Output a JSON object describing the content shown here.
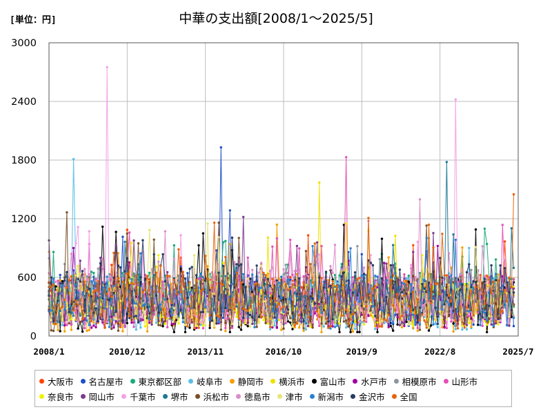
{
  "unit_label": "[単位：円]",
  "chart_data": {
    "type": "line",
    "title": "中華の支出額[2008/1～2025/5]",
    "ylim": [
      0,
      3000
    ],
    "yticks": [
      0,
      600,
      1200,
      1800,
      2400,
      3000
    ],
    "x_start": "2008/1",
    "x_end": "2025/7",
    "xticks": [
      "2008/1",
      "2010/12",
      "2013/11",
      "2016/10",
      "2019/9",
      "2022/8",
      "2025/7"
    ],
    "grid": true,
    "legend_position": "bottom",
    "series": [
      {
        "name": "大阪市",
        "color": "#ff4500"
      },
      {
        "name": "名古屋市",
        "color": "#1e50c8"
      },
      {
        "name": "東京都区部",
        "color": "#1aaa78"
      },
      {
        "name": "岐阜市",
        "color": "#5abee6"
      },
      {
        "name": "静岡市",
        "color": "#f5a000"
      },
      {
        "name": "横浜市",
        "color": "#f0e000"
      },
      {
        "name": "富山市",
        "color": "#000000"
      },
      {
        "name": "水戸市",
        "color": "#a000a0"
      },
      {
        "name": "相模原市",
        "color": "#8c96a0"
      },
      {
        "name": "山形市",
        "color": "#e650b4"
      },
      {
        "name": "奈良市",
        "color": "#f0f000"
      },
      {
        "name": "岡山市",
        "color": "#7a3c8c"
      },
      {
        "name": "千葉市",
        "color": "#f5a0e6"
      },
      {
        "name": "堺市",
        "color": "#1e7896"
      },
      {
        "name": "浜松市",
        "color": "#785028"
      },
      {
        "name": "徳島市",
        "color": "#dc8cc8"
      },
      {
        "name": "津市",
        "color": "#e6e678"
      },
      {
        "name": "新潟市",
        "color": "#2882d2"
      },
      {
        "name": "金沢市",
        "color": "#283c64"
      },
      {
        "name": "全国",
        "color": "#e6640a"
      }
    ],
    "peaks": [
      {
        "series": "千葉市",
        "date": "2010/3",
        "value": 2750
      },
      {
        "series": "千葉市",
        "date": "2023/3",
        "value": 2420
      },
      {
        "series": "名古屋市",
        "date": "2014/6",
        "value": 1930
      },
      {
        "series": "山形市",
        "date": "2019/2",
        "value": 1830
      },
      {
        "series": "岐阜市",
        "date": "2008/12",
        "value": 1810
      },
      {
        "series": "堺市",
        "date": "2022/11",
        "value": 1780
      },
      {
        "series": "横浜市",
        "date": "2018/2",
        "value": 1570
      },
      {
        "series": "全国",
        "date": "2025/5",
        "value": 1450
      }
    ]
  }
}
